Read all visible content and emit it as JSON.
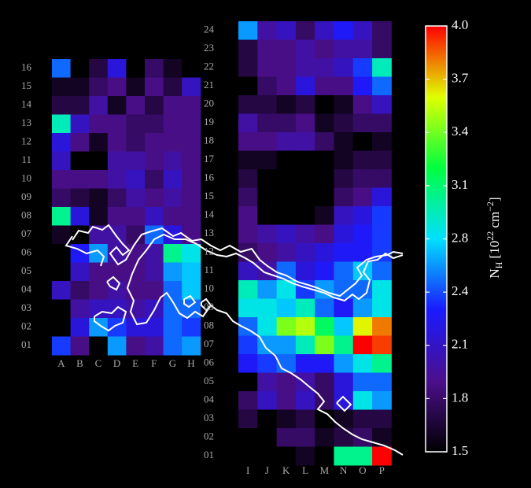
{
  "chart_data": {
    "type": "heatmap",
    "zlim": [
      1.5,
      4.0
    ],
    "zticks": [
      1.5,
      {
        "value": 1.8125,
        "label": "1.8"
      },
      {
        "value": 2.125,
        "label": "2.1"
      },
      {
        "value": 2.4375,
        "label": "2.4"
      },
      {
        "value": 2.75,
        "label": "2.8"
      },
      {
        "value": 3.0625,
        "label": "3.1"
      },
      {
        "value": 3.375,
        "label": "3.4"
      },
      {
        "value": 3.6875,
        "label": "3.7"
      },
      {
        "value": 4.0,
        "label": "4.0"
      }
    ],
    "colormap": [
      "#000000",
      "#4b0f8c",
      "#1a1aff",
      "#00e0ff",
      "#00ff40",
      "#e0ff00",
      "#ff0000"
    ],
    "colorbar_label": [
      "N",
      "H",
      " [10",
      "22",
      " cm",
      "−2",
      "]"
    ],
    "panels": [
      {
        "x": [
          "A",
          "B",
          "C",
          "D",
          "E",
          "F",
          "G",
          "H"
        ],
        "y": [
          "16",
          "15",
          "14",
          "13",
          "12",
          "11",
          "10",
          "09",
          "08",
          "07",
          "06",
          "05",
          "04",
          "03",
          "02",
          "01"
        ],
        "values": [
          [
            2.5,
            1.5,
            1.7,
            2.2,
            1.5,
            1.8,
            1.6,
            1.5
          ],
          [
            1.6,
            1.6,
            1.8,
            1.9,
            1.6,
            1.9,
            1.7,
            2.1
          ],
          [
            1.7,
            1.7,
            2.0,
            1.6,
            1.9,
            1.7,
            1.9,
            1.9
          ],
          [
            2.9,
            2.1,
            1.9,
            1.9,
            1.8,
            1.8,
            1.9,
            1.9
          ],
          [
            2.2,
            1.9,
            1.6,
            1.9,
            1.8,
            1.9,
            1.9,
            1.9
          ],
          [
            2.1,
            1.5,
            1.5,
            2.0,
            2.0,
            1.9,
            2.0,
            1.9
          ],
          [
            1.9,
            1.9,
            1.9,
            2.0,
            2.1,
            1.8,
            2.1,
            1.9
          ],
          [
            1.8,
            1.7,
            1.6,
            1.8,
            2.0,
            1.9,
            2.0,
            1.9
          ],
          [
            3.0,
            2.2,
            1.6,
            1.9,
            1.9,
            2.1,
            1.9,
            1.9
          ],
          [
            1.6,
            1.5,
            2.0,
            2.0,
            1.8,
            2.5,
            2.2,
            1.9
          ],
          [
            1.5,
            2.3,
            2.6,
            2.0,
            1.9,
            2.0,
            3.0,
            2.8
          ],
          [
            1.5,
            2.1,
            1.9,
            1.9,
            1.9,
            2.0,
            2.6,
            2.7
          ],
          [
            2.1,
            1.8,
            1.9,
            2.0,
            1.9,
            1.9,
            2.5,
            2.7
          ],
          [
            1.5,
            2.0,
            2.1,
            2.1,
            2.0,
            2.1,
            2.5,
            2.5
          ],
          [
            1.5,
            2.2,
            2.6,
            2.4,
            2.2,
            2.2,
            2.5,
            2.4
          ],
          [
            2.4,
            1.9,
            1.5,
            2.6,
            1.9,
            2.0,
            2.5,
            2.6
          ]
        ]
      },
      {
        "x": [
          "I",
          "J",
          "K",
          "L",
          "M",
          "N",
          "O",
          "P"
        ],
        "y": [
          "24",
          "23",
          "22",
          "21",
          "20",
          "19",
          "18",
          "17",
          "16",
          "15",
          "14",
          "13",
          "12",
          "11",
          "10",
          "09",
          "08",
          "07",
          "06",
          "05",
          "04",
          "03",
          "02",
          "01"
        ],
        "values": [
          [
            2.6,
            2.0,
            2.1,
            1.8,
            2.1,
            2.3,
            2.1,
            1.8
          ],
          [
            1.7,
            1.9,
            1.9,
            2.0,
            1.9,
            2.0,
            2.0,
            1.8
          ],
          [
            1.7,
            1.9,
            1.9,
            2.0,
            2.0,
            2.1,
            2.4,
            2.9
          ],
          [
            1.5,
            1.8,
            1.9,
            2.2,
            1.9,
            1.9,
            2.3,
            2.5
          ],
          [
            1.7,
            1.7,
            1.6,
            1.7,
            1.5,
            1.6,
            1.9,
            2.1
          ],
          [
            2.0,
            1.8,
            1.8,
            1.9,
            1.6,
            1.7,
            1.8,
            1.8
          ],
          [
            1.9,
            1.9,
            2.0,
            2.0,
            1.8,
            1.6,
            1.5,
            1.6
          ],
          [
            1.6,
            1.6,
            1.5,
            1.5,
            1.5,
            1.6,
            1.7,
            1.7
          ],
          [
            1.7,
            1.5,
            1.5,
            1.5,
            1.5,
            1.7,
            1.8,
            1.8
          ],
          [
            1.8,
            1.5,
            1.5,
            1.5,
            1.5,
            1.8,
            1.9,
            2.2
          ],
          [
            1.9,
            1.5,
            1.5,
            1.5,
            1.6,
            2.1,
            2.2,
            2.4
          ],
          [
            1.9,
            2.0,
            2.1,
            2.0,
            1.9,
            2.2,
            2.3,
            2.4
          ],
          [
            1.8,
            1.9,
            2.0,
            2.1,
            2.2,
            2.3,
            2.3,
            2.4
          ],
          [
            2.1,
            2.0,
            2.5,
            2.2,
            2.3,
            2.5,
            2.7,
            2.5
          ],
          [
            2.9,
            2.6,
            2.8,
            2.4,
            2.6,
            2.5,
            2.5,
            2.8
          ],
          [
            2.8,
            2.8,
            2.7,
            2.9,
            2.5,
            2.3,
            2.6,
            2.8
          ],
          [
            2.5,
            2.8,
            3.4,
            3.5,
            3.1,
            2.7,
            3.6,
            3.8
          ],
          [
            2.4,
            2.6,
            2.6,
            2.9,
            3.4,
            3.0,
            4.0,
            3.9
          ],
          [
            2.3,
            2.4,
            2.5,
            2.3,
            2.3,
            2.6,
            2.8,
            3.0
          ],
          [
            1.5,
            2.0,
            1.9,
            2.0,
            1.8,
            2.2,
            2.5,
            2.5
          ],
          [
            1.8,
            2.1,
            1.9,
            2.1,
            1.8,
            2.2,
            2.8,
            2.6
          ],
          [
            1.7,
            1.5,
            1.6,
            1.7,
            1.5,
            1.6,
            1.7,
            1.7
          ],
          [
            1.5,
            1.5,
            1.8,
            1.8,
            1.6,
            1.7,
            1.8,
            1.6
          ],
          [
            1.5,
            1.5,
            1.5,
            1.6,
            1.5,
            3.0,
            3.0,
            4.0
          ]
        ]
      }
    ]
  }
}
